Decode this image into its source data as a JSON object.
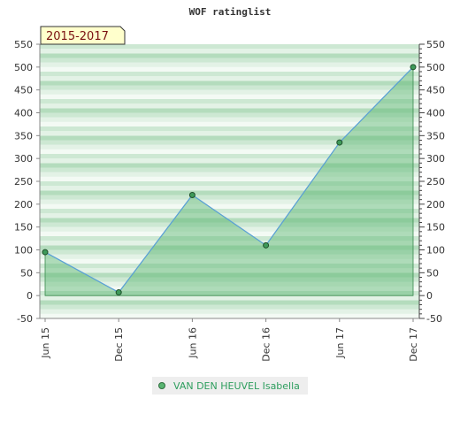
{
  "chart_data": {
    "type": "area",
    "title": "WOF ratinglist",
    "badge": "2015-2017",
    "categories": [
      "Jun 15",
      "Dec 15",
      "Jun 16",
      "Dec 16",
      "Jun 17",
      "Dec 17"
    ],
    "series": [
      {
        "name": "VAN DEN HEUVEL Isabella",
        "values": [
          95,
          7,
          220,
          110,
          335,
          500
        ]
      }
    ],
    "ylim": [
      -50,
      550
    ],
    "yticks": [
      -50,
      0,
      50,
      100,
      150,
      200,
      250,
      300,
      350,
      400,
      450,
      500,
      550
    ],
    "grid": true,
    "legend": "bottom",
    "colors": {
      "line": "#5aa0d8",
      "fill": "#5ab572",
      "marker": "#3f9a5a",
      "badge_bg": "#ffffcc",
      "badge_text": "#7a1010",
      "legend_text": "#2e9e5e"
    }
  }
}
